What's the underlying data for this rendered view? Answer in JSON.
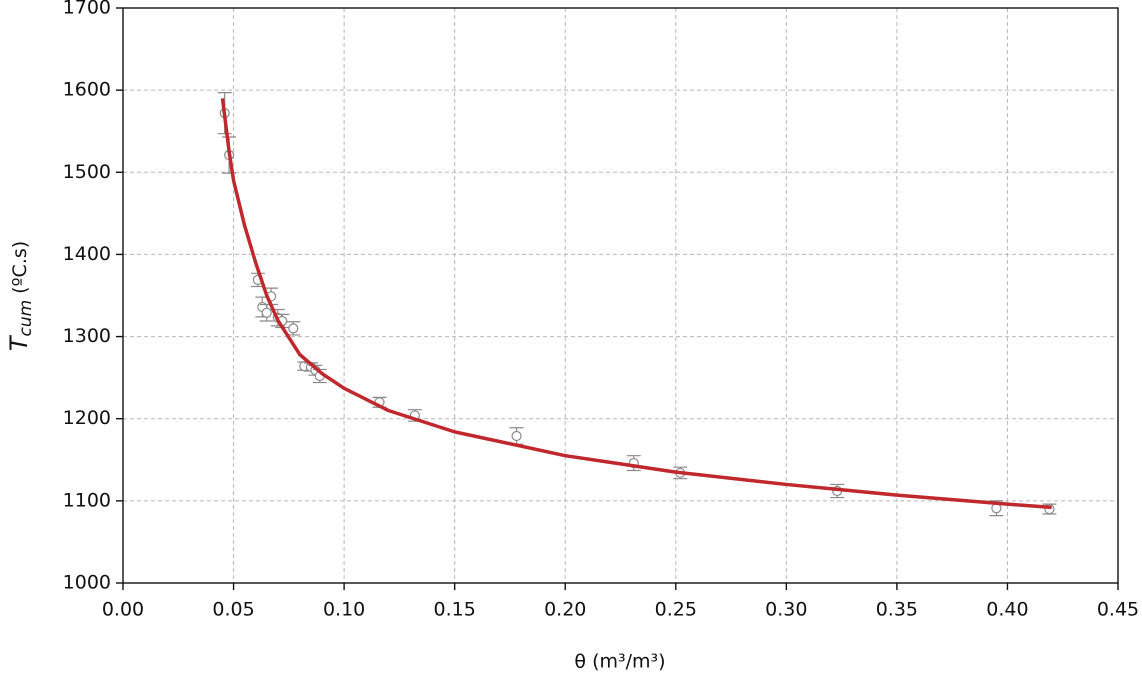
{
  "chart_data": {
    "type": "scatter",
    "xlabel": "θ (m³/m³)",
    "ylabel": {
      "symbol": "T",
      "subscript": "cum",
      "unit": "(ºC.s)"
    },
    "xlim": [
      0,
      0.45
    ],
    "ylim": [
      1000,
      1700
    ],
    "xticks": [
      {
        "value": 0,
        "label": "0.00"
      },
      {
        "value": 0.05,
        "label": "0.05"
      },
      {
        "value": 0.1,
        "label": "0.10"
      },
      {
        "value": 0.15,
        "label": "0.15"
      },
      {
        "value": 0.2,
        "label": "0.20"
      },
      {
        "value": 0.25,
        "label": "0.25"
      },
      {
        "value": 0.3,
        "label": "0.30"
      },
      {
        "value": 0.35,
        "label": "0.35"
      },
      {
        "value": 0.4,
        "label": "0.40"
      },
      {
        "value": 0.45,
        "label": "0.45"
      }
    ],
    "yticks": [
      1000,
      1100,
      1200,
      1300,
      1400,
      1500,
      1600,
      1700
    ],
    "grid": true,
    "series": [
      {
        "type": "scatter",
        "color": "#8a8a8a",
        "x": [
          0.046,
          0.048,
          0.061,
          0.063,
          0.065,
          0.067,
          0.07,
          0.072,
          0.077,
          0.082,
          0.085,
          0.087,
          0.089,
          0.116,
          0.132,
          0.178,
          0.231,
          0.252,
          0.323,
          0.395,
          0.419
        ],
        "values": [
          1572,
          1521,
          1369,
          1336,
          1329,
          1349,
          1323,
          1319,
          1310,
          1264,
          1263,
          1259,
          1252,
          1220,
          1204,
          1179,
          1146,
          1134,
          1112,
          1091,
          1090
        ],
        "errors": [
          25,
          22,
          8,
          12,
          10,
          10,
          10,
          8,
          8,
          5,
          5,
          6,
          8,
          6,
          7,
          10,
          9,
          7,
          8,
          9,
          6
        ]
      },
      {
        "type": "line",
        "color": "#c0282d",
        "x": [
          0.045,
          0.048,
          0.05,
          0.055,
          0.06,
          0.065,
          0.07,
          0.08,
          0.09,
          0.1,
          0.12,
          0.15,
          0.2,
          0.25,
          0.3,
          0.35,
          0.4,
          0.42
        ],
        "values": [
          1590,
          1525,
          1490,
          1435,
          1390,
          1350,
          1320,
          1278,
          1255,
          1237,
          1210,
          1184,
          1155,
          1135,
          1120,
          1107,
          1096,
          1092
        ]
      }
    ]
  }
}
